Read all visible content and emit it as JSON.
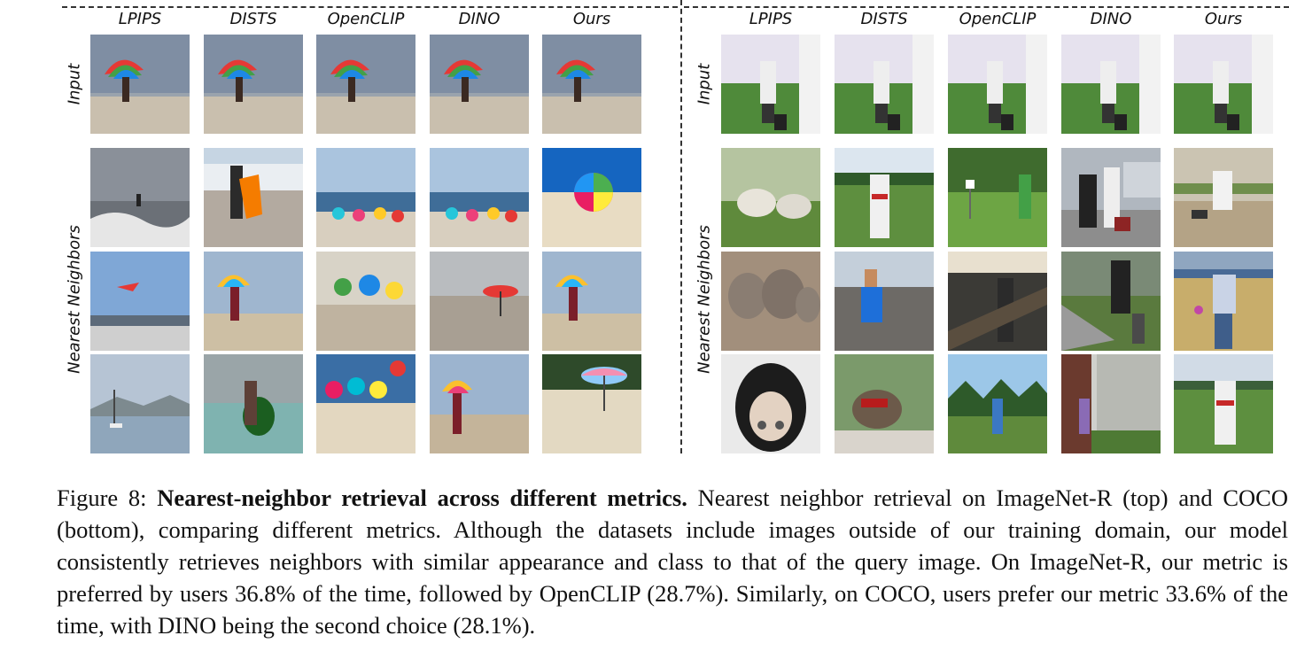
{
  "left_panel": {
    "columns": [
      "LPIPS",
      "DISTS",
      "OpenCLIP",
      "DINO",
      "Ours"
    ],
    "row_label_input": "Input",
    "row_label_neighbors": "Nearest Neighbors",
    "input_image": "beach-umbrella-woman",
    "neighbors": [
      [
        "surfer-waves",
        "surfer-orange-board",
        "beach-umbrellas-crowd",
        "beach-umbrellas-crowd",
        "rainbow-umbrella-beach"
      ],
      [
        "kite-festival-crowd",
        "woman-rainbow-umbrella",
        "beach-market-tents",
        "beach-red-umbrella",
        "woman-rainbow-umbrella"
      ],
      [
        "sailboat-harbor",
        "boy-bodyboard",
        "colorful-umbrellas-beach",
        "woman-rainbow-umbrella",
        "woman-striped-umbrella"
      ]
    ]
  },
  "right_panel": {
    "columns": [
      "LPIPS",
      "DISTS",
      "OpenCLIP",
      "DINO",
      "Ours"
    ],
    "row_label_input": "Input",
    "row_label_neighbors": "Nearest Neighbors",
    "input_image": "man-field-luggage",
    "neighbors": [
      [
        "sheep-field",
        "baseball-player",
        "man-lawn-sign",
        "couple-luggage",
        "man-sandy-field"
      ],
      [
        "elephant-herd",
        "boy-crouching",
        "man-train-platform",
        "man-backpack-road",
        "man-field-frisbee"
      ],
      [
        "cow-closeup",
        "elephant-rider",
        "man-park-frisbee",
        "family-house",
        "baseball-player-field"
      ]
    ]
  },
  "caption": {
    "figure_number": "Figure 8:",
    "title": "Nearest-neighbor retrieval across different metrics.",
    "body": "Nearest neighbor retrieval on ImageNet-R (top) and COCO (bottom), comparing different metrics. Although the datasets include images outside of our training domain, our model consistently retrieves neighbors with similar appearance and class to that of the query image. On ImageNet-R, our metric is preferred by users 36.8% of the time, followed by OpenCLIP (28.7%). Similarly, on COCO, users prefer our metric 33.6% of the time, with DINO being the second choice (28.1%)."
  }
}
